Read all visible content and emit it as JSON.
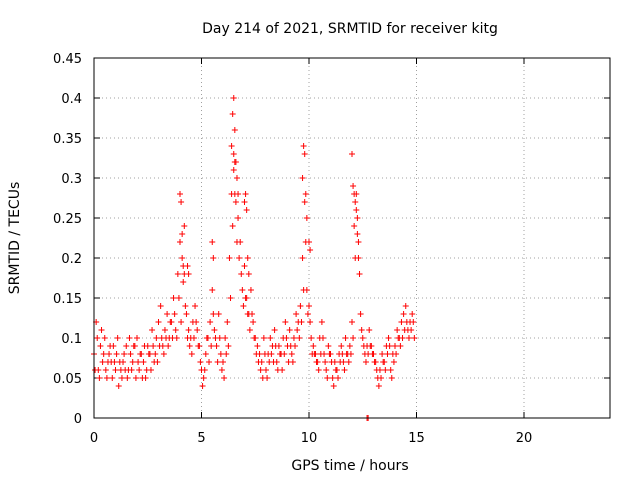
{
  "chart_data": {
    "type": "scatter",
    "title": "Day 214 of 2021, SRMTID for receiver kitg",
    "xlabel": "GPS time / hours",
    "ylabel": "SRMTID / TECUs",
    "xlim": [
      0,
      24
    ],
    "ylim": [
      0,
      0.45
    ],
    "x_ticks": [
      0,
      5,
      10,
      15,
      20
    ],
    "y_ticks": [
      0,
      0.05,
      0.1,
      0.15,
      0.2,
      0.25,
      0.3,
      0.35,
      0.4,
      0.45
    ],
    "x_tick_labels": [
      "0",
      "5",
      "10",
      "15",
      "20"
    ],
    "y_tick_labels": [
      "0",
      "0.05",
      "0.1",
      "0.15",
      "0.2",
      "0.25",
      "0.3",
      "0.35",
      "0.4",
      "0.45"
    ],
    "grid": true,
    "marker": "+",
    "color": "#ff0000",
    "series": [
      {
        "x": [
          0.0,
          0.1,
          0.2,
          0.3,
          0.4,
          0.5,
          0.6,
          0.7,
          0.8,
          0.9,
          1.0,
          1.1,
          1.2,
          1.3,
          1.4,
          1.5,
          1.6,
          1.7,
          1.8,
          1.9,
          2.0,
          2.1,
          2.2,
          2.3,
          2.4,
          2.5,
          2.6,
          2.7,
          2.8,
          2.9,
          3.0,
          3.1,
          3.2,
          3.3,
          3.4,
          3.5,
          3.6,
          3.7,
          3.8,
          3.9,
          4.0,
          4.1,
          4.2,
          4.3,
          4.4,
          4.5,
          4.6,
          4.7,
          4.8,
          4.9,
          5.0,
          5.1,
          5.2,
          5.3,
          5.4,
          5.5,
          5.6,
          5.7,
          5.8,
          5.9,
          6.0,
          6.1,
          6.2,
          6.3,
          6.4,
          6.5,
          6.6,
          6.7,
          6.8,
          6.9,
          7.0,
          7.1,
          7.2,
          7.3,
          7.4,
          7.5,
          7.6,
          7.7,
          7.8,
          7.9,
          8.0,
          8.1,
          8.2,
          8.3,
          8.4,
          8.5,
          8.6,
          8.7,
          8.8,
          8.9,
          9.0,
          9.1,
          9.2,
          9.3,
          9.4,
          9.5,
          9.6,
          9.7,
          9.8,
          9.9,
          10.0,
          10.1,
          10.2,
          10.3,
          10.4,
          10.5,
          10.6,
          10.7,
          10.8,
          10.9,
          11.0,
          11.1,
          11.2,
          11.3,
          11.4,
          11.5,
          11.6,
          11.7,
          11.8,
          11.9,
          12.0,
          12.1,
          12.2,
          12.3,
          12.4,
          12.5,
          12.6,
          12.7,
          12.8,
          12.9,
          13.0,
          13.1,
          13.2,
          13.3,
          13.4,
          13.5,
          13.6,
          13.7,
          13.8,
          13.9,
          14.0,
          14.1,
          14.2,
          14.3,
          14.4,
          14.5,
          14.6,
          14.7,
          14.8,
          14.9,
          0.05,
          0.15,
          0.25,
          0.35,
          0.45,
          0.55,
          0.65,
          0.75,
          0.85,
          0.95,
          1.05,
          1.15,
          1.25,
          1.35,
          1.45,
          1.55,
          1.65,
          1.75,
          1.85,
          1.95,
          2.05,
          2.15,
          2.25,
          2.35,
          2.45,
          2.55,
          2.65,
          2.75,
          2.85,
          2.95,
          3.05,
          3.15,
          3.25,
          3.35,
          3.45,
          3.55,
          3.65,
          3.75,
          3.85,
          3.95,
          4.05,
          4.15,
          4.25,
          4.35,
          4.45,
          4.55,
          4.65,
          4.75,
          4.85,
          4.95,
          5.05,
          5.15,
          5.25,
          5.35,
          5.45,
          5.55,
          5.65,
          5.75,
          5.85,
          5.95,
          6.05,
          6.15,
          6.25,
          6.35,
          6.45,
          6.55,
          6.65,
          6.75,
          6.85,
          6.95,
          7.05,
          7.15,
          7.25,
          7.35,
          7.45,
          7.55,
          7.65,
          7.75,
          7.85,
          7.95,
          8.05,
          8.15,
          8.25,
          8.35,
          8.45,
          8.55,
          8.65,
          8.75,
          8.85,
          8.95,
          9.05,
          9.15,
          9.25,
          9.35,
          9.45,
          9.55,
          9.65,
          9.75,
          9.85,
          9.95,
          10.05,
          10.15,
          10.25,
          10.35,
          10.45,
          10.55,
          10.65,
          10.75,
          10.85,
          10.95,
          11.05,
          11.15,
          11.25,
          11.35,
          11.45,
          11.55,
          11.65,
          11.75,
          11.85,
          11.95,
          12.05,
          12.15,
          12.25,
          12.35,
          12.45,
          12.55,
          12.65,
          12.75,
          12.85,
          12.95,
          13.05,
          13.15,
          13.25,
          13.35,
          13.45,
          13.55,
          13.65,
          13.75,
          13.85,
          13.95,
          14.05,
          14.15,
          14.25,
          14.35,
          14.45,
          14.55,
          14.65,
          14.75,
          14.85,
          4.0,
          4.05,
          4.1,
          4.15,
          4.2,
          6.4,
          6.45,
          6.5,
          6.55,
          6.6,
          6.65,
          6.7,
          7.0,
          7.05,
          7.1,
          9.7,
          9.75,
          9.8,
          9.85,
          9.9,
          10.0,
          10.05,
          12.0,
          12.05,
          12.1,
          12.15,
          12.2,
          12.25,
          6.5,
          6.55,
          7.15,
          7.2,
          4.35,
          4.4,
          5.5,
          5.55,
          12.3,
          12.7,
          12.75
        ],
        "y": [
          0.08,
          0.12,
          0.06,
          0.09,
          0.07,
          0.1,
          0.05,
          0.08,
          0.07,
          0.09,
          0.06,
          0.1,
          0.07,
          0.05,
          0.08,
          0.09,
          0.06,
          0.08,
          0.07,
          0.09,
          0.1,
          0.06,
          0.08,
          0.07,
          0.05,
          0.09,
          0.08,
          0.11,
          0.07,
          0.1,
          0.12,
          0.14,
          0.09,
          0.11,
          0.13,
          0.1,
          0.12,
          0.15,
          0.11,
          0.18,
          0.22,
          0.2,
          0.24,
          0.13,
          0.11,
          0.1,
          0.12,
          0.14,
          0.11,
          0.09,
          0.06,
          0.05,
          0.08,
          0.1,
          0.12,
          0.16,
          0.11,
          0.09,
          0.13,
          0.08,
          0.07,
          0.1,
          0.12,
          0.2,
          0.28,
          0.33,
          0.27,
          0.25,
          0.22,
          0.16,
          0.19,
          0.15,
          0.13,
          0.16,
          0.12,
          0.1,
          0.09,
          0.08,
          0.07,
          0.1,
          0.06,
          0.08,
          0.1,
          0.09,
          0.11,
          0.07,
          0.09,
          0.08,
          0.1,
          0.12,
          0.09,
          0.11,
          0.08,
          0.1,
          0.13,
          0.12,
          0.14,
          0.2,
          0.27,
          0.16,
          0.14,
          0.1,
          0.09,
          0.08,
          0.07,
          0.1,
          0.12,
          0.08,
          0.06,
          0.09,
          0.08,
          0.05,
          0.07,
          0.06,
          0.08,
          0.09,
          0.07,
          0.1,
          0.08,
          0.09,
          0.12,
          0.24,
          0.28,
          0.22,
          0.13,
          0.1,
          0.08,
          0.09,
          0.11,
          0.09,
          0.08,
          0.07,
          0.05,
          0.06,
          0.08,
          0.07,
          0.09,
          0.1,
          0.06,
          0.08,
          0.09,
          0.11,
          0.1,
          0.12,
          0.13,
          0.14,
          0.11,
          0.12,
          0.13,
          0.1,
          0.06,
          0.1,
          0.05,
          0.11,
          0.08,
          0.06,
          0.07,
          0.09,
          0.05,
          0.07,
          0.08,
          0.04,
          0.06,
          0.07,
          0.06,
          0.05,
          0.1,
          0.06,
          0.09,
          0.05,
          0.07,
          0.08,
          0.05,
          0.09,
          0.06,
          0.08,
          0.06,
          0.09,
          0.08,
          0.07,
          0.09,
          0.1,
          0.08,
          0.1,
          0.09,
          0.12,
          0.1,
          0.13,
          0.1,
          0.15,
          0.12,
          0.17,
          0.14,
          0.1,
          0.09,
          0.08,
          0.1,
          0.12,
          0.09,
          0.07,
          0.04,
          0.06,
          0.1,
          0.07,
          0.09,
          0.13,
          0.1,
          0.07,
          0.1,
          0.06,
          0.05,
          0.08,
          0.09,
          0.15,
          0.24,
          0.28,
          0.22,
          0.2,
          0.18,
          0.14,
          0.15,
          0.13,
          0.11,
          0.13,
          0.1,
          0.08,
          0.07,
          0.06,
          0.05,
          0.08,
          0.05,
          0.07,
          0.08,
          0.07,
          0.09,
          0.06,
          0.08,
          0.06,
          0.08,
          0.1,
          0.07,
          0.09,
          0.07,
          0.09,
          0.11,
          0.1,
          0.12,
          0.16,
          0.22,
          0.13,
          0.12,
          0.08,
          0.08,
          0.07,
          0.06,
          0.08,
          0.1,
          0.07,
          0.05,
          0.08,
          0.07,
          0.04,
          0.06,
          0.05,
          0.07,
          0.08,
          0.06,
          0.08,
          0.07,
          0.08,
          0.1,
          0.2,
          0.25,
          0.18,
          0.11,
          0.09,
          0.07,
          0.08,
          0.09,
          0.08,
          0.07,
          0.06,
          0.04,
          0.05,
          0.07,
          0.06,
          0.08,
          0.09,
          0.05,
          0.07,
          0.08,
          0.1,
          0.09,
          0.1,
          0.11,
          0.12,
          0.1,
          0.11,
          0.12,
          0.28,
          0.27,
          0.23,
          0.19,
          0.18,
          0.34,
          0.38,
          0.4,
          0.36,
          0.32,
          0.3,
          0.28,
          0.27,
          0.28,
          0.26,
          0.3,
          0.34,
          0.33,
          0.28,
          0.25,
          0.22,
          0.21,
          0.33,
          0.29,
          0.28,
          0.27,
          0.26,
          0.23,
          0.31,
          0.32,
          0.2,
          0.18,
          0.19,
          0.18,
          0.22,
          0.2,
          0.2,
          0.0,
          0.0
        ]
      }
    ]
  }
}
